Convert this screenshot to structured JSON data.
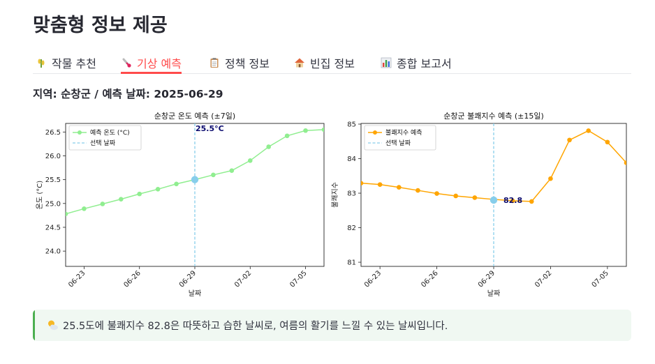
{
  "page": {
    "title": "맞춤형 정보 제공"
  },
  "tabs": [
    {
      "label": "작물 추천",
      "icon": "crop-icon",
      "active": false
    },
    {
      "label": "기상 예측",
      "icon": "thermometer-icon",
      "active": true
    },
    {
      "label": "정책 정보",
      "icon": "clipboard-icon",
      "active": false
    },
    {
      "label": "빈집 정보",
      "icon": "house-icon",
      "active": false
    },
    {
      "label": "종합 보고서",
      "icon": "bar-chart-icon",
      "active": false
    }
  ],
  "subheader": "지역: 순창군 / 예측 날짜: 2025-06-29",
  "info": {
    "icon": "sun-behind-cloud-icon",
    "text": "25.5도에 불쾌지수 82.8은 따뜻하고 습한 날씨로, 여름의 활기를 느낄 수 있는 날씨입니다."
  },
  "colors": {
    "accent": "#ff4b4b",
    "temp_line": "#90ee90",
    "di_line": "#ffa500",
    "selected": "#87ceeb",
    "info_bar": "#4caf50",
    "info_bg": "#f0f8f2"
  },
  "chart_data": [
    {
      "type": "line",
      "title": "순창군 온도 예측 (±7일)",
      "xlabel": "날짜",
      "ylabel": "온도 (°C)",
      "x": [
        "06-22",
        "06-23",
        "06-24",
        "06-25",
        "06-26",
        "06-27",
        "06-28",
        "06-29",
        "06-30",
        "07-01",
        "07-02",
        "07-03",
        "07-04",
        "07-05",
        "07-06"
      ],
      "xticks": [
        "06-23",
        "06-26",
        "06-29",
        "07-02",
        "07-05"
      ],
      "yticks": [
        "24.0",
        "24.5",
        "25.0",
        "25.5",
        "26.0",
        "26.5"
      ],
      "ylim": [
        23.68,
        26.68
      ],
      "series": [
        {
          "name": "예측 온도 (°C)",
          "values": [
            24.78,
            24.89,
            24.99,
            25.09,
            25.2,
            25.3,
            25.41,
            25.5,
            25.6,
            25.69,
            25.9,
            26.19,
            26.42,
            26.53,
            26.55
          ]
        }
      ],
      "selected": {
        "x": "06-29",
        "value": 25.5,
        "label": "25.5°C",
        "legend": "선택 날짜"
      },
      "legend": "top-left",
      "grid": false
    },
    {
      "type": "line",
      "title": "순창군 불쾌지수 예측 (±15일)",
      "xlabel": "날짜",
      "ylabel": "불쾌지수",
      "x": [
        "06-22",
        "06-23",
        "06-24",
        "06-25",
        "06-26",
        "06-27",
        "06-28",
        "06-29",
        "06-30",
        "07-01",
        "07-02",
        "07-03",
        "07-04",
        "07-05",
        "07-06"
      ],
      "xticks": [
        "06-23",
        "06-26",
        "06-29",
        "07-02",
        "07-05"
      ],
      "yticks": [
        "81",
        "82",
        "83",
        "84",
        "85"
      ],
      "ylim": [
        80.88,
        85.02
      ],
      "series": [
        {
          "name": "불쾌지수 예측",
          "values": [
            83.29,
            83.25,
            83.17,
            83.08,
            82.99,
            82.92,
            82.87,
            82.82,
            82.78,
            82.76,
            83.42,
            84.54,
            84.81,
            84.48,
            83.88
          ]
        }
      ],
      "selected": {
        "x": "06-29",
        "value": 82.8,
        "label": "82.8",
        "legend": "선택 날짜"
      },
      "legend": "top-left",
      "grid": false
    }
  ]
}
